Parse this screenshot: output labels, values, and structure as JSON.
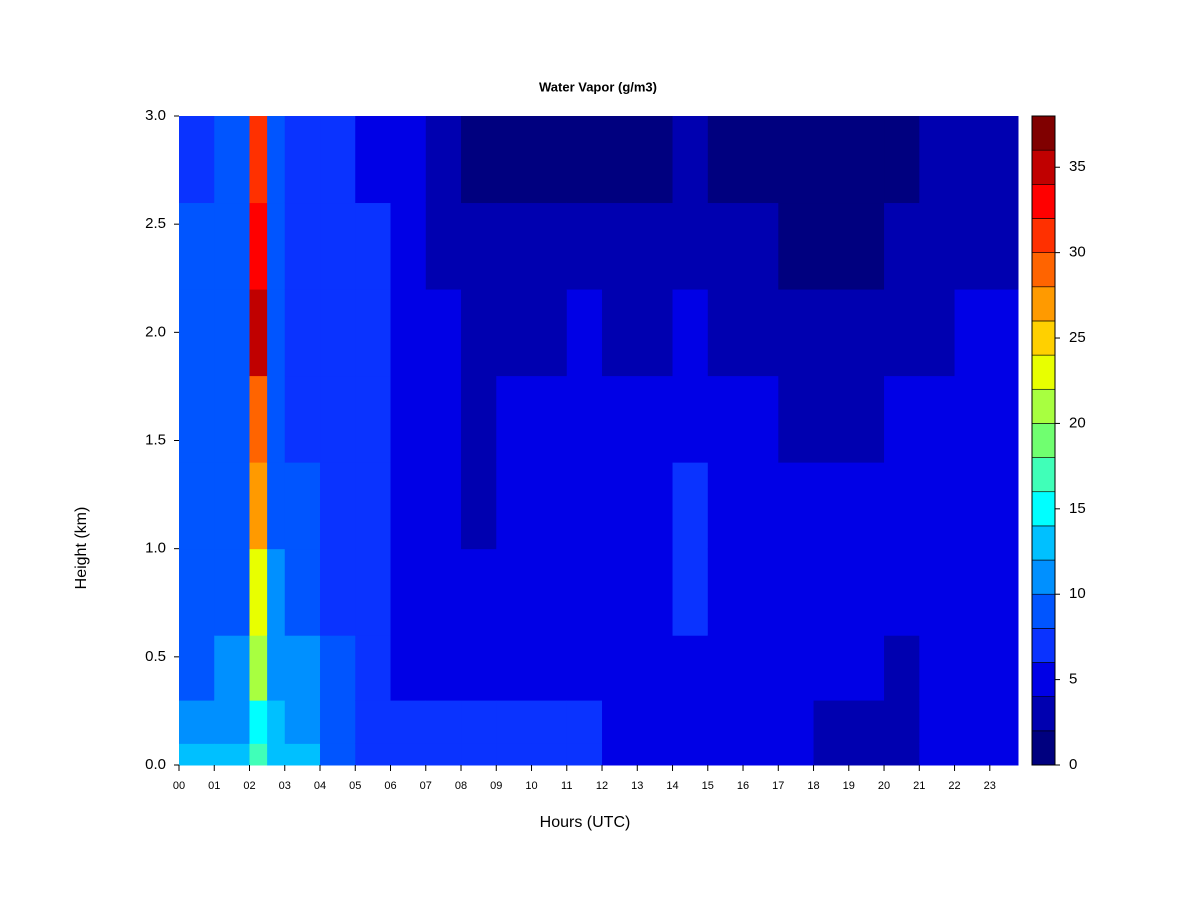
{
  "chart_data": {
    "type": "filled-contour",
    "title": "Water Vapor (g/m3)",
    "x_label": "Hours (UTC)",
    "y_label": "Height (km)",
    "xlim": [
      0,
      23.8
    ],
    "ylim": [
      0,
      3
    ],
    "xticks": [
      {
        "value": 0,
        "label": "00"
      },
      {
        "value": 1,
        "label": "01"
      },
      {
        "value": 2,
        "label": "02"
      },
      {
        "value": 3,
        "label": "03"
      },
      {
        "value": 4,
        "label": "04"
      },
      {
        "value": 5,
        "label": "05"
      },
      {
        "value": 6,
        "label": "06"
      },
      {
        "value": 7,
        "label": "07"
      },
      {
        "value": 8,
        "label": "08"
      },
      {
        "value": 9,
        "label": "09"
      },
      {
        "value": 10,
        "label": "10"
      },
      {
        "value": 11,
        "label": "11"
      },
      {
        "value": 12,
        "label": "12"
      },
      {
        "value": 13,
        "label": "13"
      },
      {
        "value": 14,
        "label": "14"
      },
      {
        "value": 15,
        "label": "15"
      },
      {
        "value": 16,
        "label": "16"
      },
      {
        "value": 17,
        "label": "17"
      },
      {
        "value": 18,
        "label": "18"
      },
      {
        "value": 19,
        "label": "19"
      },
      {
        "value": 20,
        "label": "20"
      },
      {
        "value": 21,
        "label": "21"
      },
      {
        "value": 22,
        "label": "22"
      },
      {
        "value": 23,
        "label": "23"
      }
    ],
    "yticks": [
      {
        "value": 0,
        "label": "0.0"
      },
      0.5,
      {
        "value": 1,
        "label": "1.0"
      },
      1.5,
      {
        "value": 2,
        "label": "2.0"
      },
      2.5,
      {
        "value": 3,
        "label": "3.0"
      }
    ],
    "x_edges": [
      0,
      1,
      2,
      2.5,
      3,
      4,
      5,
      6,
      7,
      8,
      9,
      10,
      11,
      12,
      14,
      15,
      17,
      18,
      20,
      21,
      22,
      23.8
    ],
    "y_edges": [
      0,
      0.1,
      0.3,
      0.6,
      1.0,
      1.4,
      1.8,
      2.2,
      2.6,
      3.0
    ],
    "z": [
      [
        13,
        11,
        9,
        9,
        9,
        9,
        8,
        8,
        7
      ],
      [
        13,
        11,
        11,
        9,
        9,
        9,
        9,
        8,
        8
      ],
      [
        16,
        15,
        20,
        22,
        26,
        29,
        35,
        32,
        31
      ],
      [
        13,
        13,
        11,
        11,
        9,
        9,
        9,
        8,
        8
      ],
      [
        13,
        11,
        11,
        9,
        9,
        7,
        7,
        7,
        7
      ],
      [
        9,
        9,
        9,
        7,
        7,
        7,
        7,
        7,
        7
      ],
      [
        7,
        7,
        7,
        7,
        7,
        7,
        7,
        7,
        5
      ],
      [
        7,
        7,
        5,
        5,
        5,
        5,
        5,
        5,
        5
      ],
      [
        7,
        7,
        5,
        5,
        5,
        5,
        5,
        3,
        3
      ],
      [
        7,
        7,
        5,
        5,
        3,
        3,
        3,
        3,
        1
      ],
      [
        7,
        7,
        5,
        5,
        5,
        5,
        3,
        3,
        1
      ],
      [
        7,
        7,
        5,
        5,
        5,
        5,
        3,
        3,
        1
      ],
      [
        7,
        7,
        5,
        5,
        5,
        5,
        5,
        3,
        1
      ],
      [
        5,
        5,
        5,
        5,
        5,
        5,
        3,
        3,
        1
      ],
      [
        5,
        5,
        5,
        7,
        7,
        5,
        5,
        3,
        3
      ],
      [
        5,
        5,
        5,
        5,
        5,
        5,
        3,
        3,
        1
      ],
      [
        5,
        5,
        5,
        5,
        5,
        3,
        3,
        1,
        1
      ],
      [
        3,
        3,
        5,
        5,
        5,
        3,
        3,
        1,
        1
      ],
      [
        3,
        3,
        3,
        5,
        5,
        5,
        3,
        3,
        1
      ],
      [
        5,
        5,
        5,
        5,
        5,
        5,
        3,
        3,
        3
      ],
      [
        5,
        5,
        5,
        5,
        5,
        5,
        5,
        3,
        3
      ]
    ],
    "levels": [
      0,
      2,
      4,
      6,
      8,
      10,
      12,
      14,
      16,
      18,
      20,
      22,
      24,
      26,
      28,
      30,
      32,
      34,
      36,
      38
    ],
    "colors": [
      "#00007f",
      "#0000b0",
      "#0000e6",
      "#0a33ff",
      "#0055ff",
      "#0090ff",
      "#00c0ff",
      "#00ffff",
      "#40ffb8",
      "#70ff70",
      "#a8ff40",
      "#e8ff00",
      "#ffd000",
      "#ff9a00",
      "#ff6400",
      "#ff3000",
      "#ff0000",
      "#c00000",
      "#800000"
    ],
    "colorbar_ticks": [
      0,
      5,
      10,
      15,
      20,
      25,
      30,
      35
    ]
  }
}
